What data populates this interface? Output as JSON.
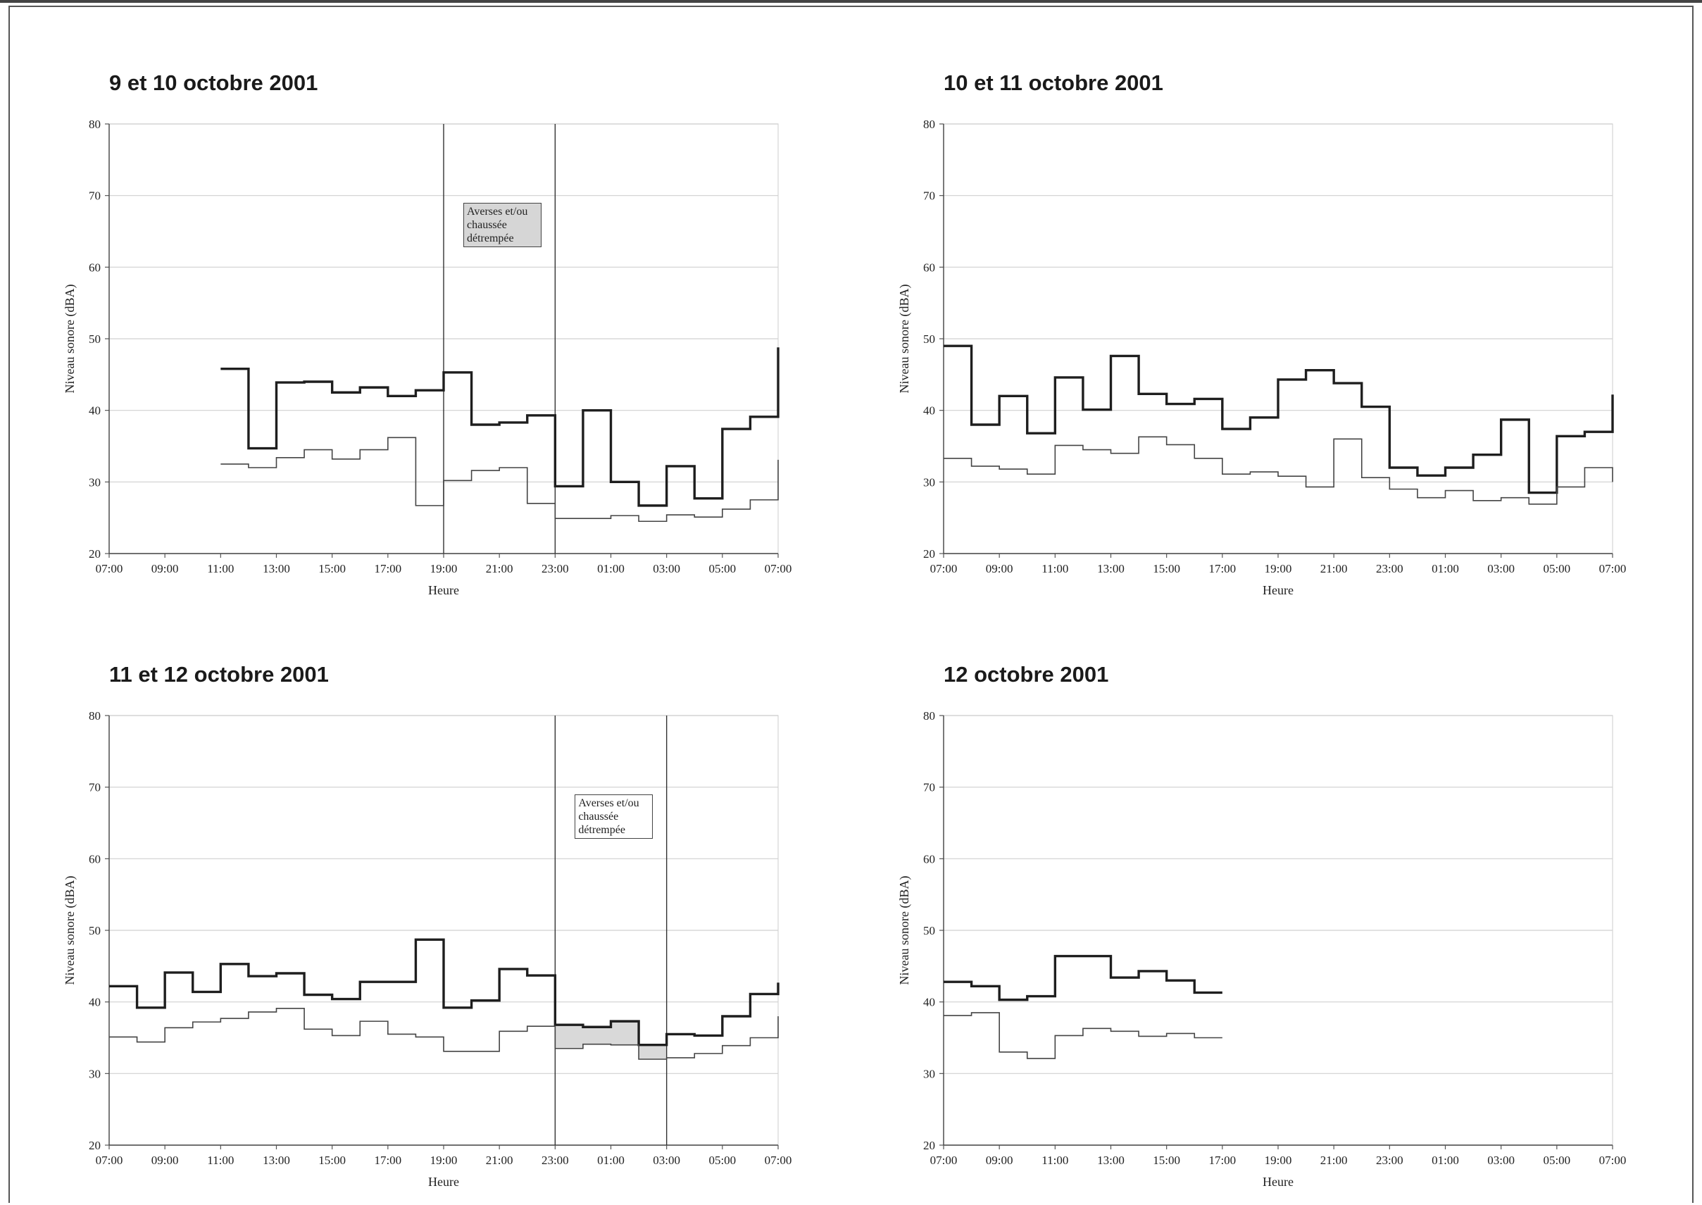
{
  "charts": [
    {
      "id": "p1",
      "title": "9 et 10 octobre 2001",
      "xlabel": "Heure",
      "ylabel": "Niveau sonore (dBA)",
      "annotation": {
        "lines": [
          "Averses et/ou",
          "chaussée",
          "détrempée"
        ],
        "filled": true,
        "start_hour": 12,
        "end_hour": 16
      }
    },
    {
      "id": "p2",
      "title": "10 et 11 octobre 2001",
      "xlabel": "Heure",
      "ylabel": "Niveau sonore (dBA)",
      "annotation": null
    },
    {
      "id": "p3",
      "title": "11 et 12 octobre 2001",
      "xlabel": "Heure",
      "ylabel": "Niveau sonore (dBA)",
      "annotation": {
        "lines": [
          "Averses et/ou",
          "chaussée",
          "détrempée"
        ],
        "filled": false,
        "start_hour": 16,
        "end_hour": 20
      }
    },
    {
      "id": "p4",
      "title": "12 octobre 2001",
      "xlabel": "Heure",
      "ylabel": "Niveau sonore (dBA)",
      "annotation": null
    }
  ],
  "chart_data": [
    {
      "type": "line",
      "title": "9 et 10 octobre 2001",
      "xlabel": "Heure",
      "ylabel": "Niveau sonore (dBA)",
      "xticks": [
        "07:00",
        "09:00",
        "11:00",
        "13:00",
        "15:00",
        "17:00",
        "19:00",
        "21:00",
        "23:00",
        "01:00",
        "03:00",
        "05:00",
        "07:00"
      ],
      "ylim": [
        20,
        80
      ],
      "yticks": [
        20,
        30,
        40,
        50,
        60,
        70,
        80
      ],
      "step": "post",
      "grid": true,
      "vertical_markers": [
        "19:00",
        "23:00"
      ],
      "series": [
        {
          "x": [
            "11:00",
            "12:00",
            "13:00",
            "14:00",
            "15:00",
            "16:00",
            "17:00",
            "18:00",
            "19:00",
            "20:00",
            "21:00",
            "22:00",
            "23:00",
            "00:00",
            "01:00",
            "02:00",
            "03:00",
            "04:00",
            "05:00",
            "06:00",
            "07:00"
          ],
          "values": [
            45.8,
            34.7,
            43.9,
            44.0,
            42.5,
            43.2,
            42.0,
            42.8,
            45.3,
            38.0,
            38.3,
            39.3,
            29.4,
            40.0,
            30.0,
            26.7,
            32.2,
            27.7,
            37.4,
            39.1,
            48.8
          ]
        },
        {
          "x": [
            "11:00",
            "12:00",
            "13:00",
            "14:00",
            "15:00",
            "16:00",
            "17:00",
            "18:00",
            "19:00",
            "20:00",
            "21:00",
            "22:00",
            "23:00",
            "00:00",
            "01:00",
            "02:00",
            "03:00",
            "04:00",
            "05:00",
            "06:00",
            "07:00"
          ],
          "values": [
            32.5,
            32.0,
            33.4,
            34.5,
            33.2,
            34.5,
            36.2,
            26.7,
            30.2,
            31.6,
            32.0,
            27.0,
            24.9,
            24.9,
            25.3,
            24.5,
            25.4,
            25.1,
            26.2,
            27.5,
            33.1
          ]
        }
      ]
    },
    {
      "type": "line",
      "title": "10 et 11 octobre 2001",
      "xlabel": "Heure",
      "ylabel": "Niveau sonore (dBA)",
      "xticks": [
        "07:00",
        "09:00",
        "11:00",
        "13:00",
        "15:00",
        "17:00",
        "19:00",
        "21:00",
        "23:00",
        "01:00",
        "03:00",
        "05:00",
        "07:00"
      ],
      "ylim": [
        20,
        80
      ],
      "yticks": [
        20,
        30,
        40,
        50,
        60,
        70,
        80
      ],
      "step": "post",
      "grid": true,
      "series": [
        {
          "x": [
            "07:00",
            "08:00",
            "09:00",
            "10:00",
            "11:00",
            "12:00",
            "13:00",
            "14:00",
            "15:00",
            "16:00",
            "17:00",
            "18:00",
            "19:00",
            "20:00",
            "21:00",
            "22:00",
            "23:00",
            "00:00",
            "01:00",
            "02:00",
            "03:00",
            "04:00",
            "05:00",
            "06:00",
            "07:00"
          ],
          "values": [
            49.0,
            38.0,
            42.0,
            36.8,
            44.6,
            40.1,
            47.6,
            42.3,
            40.9,
            41.6,
            37.4,
            39.0,
            44.3,
            45.6,
            43.8,
            40.5,
            32.0,
            30.9,
            32.0,
            33.8,
            38.7,
            28.5,
            36.4,
            37.0,
            42.2
          ]
        },
        {
          "x": [
            "07:00",
            "08:00",
            "09:00",
            "10:00",
            "11:00",
            "12:00",
            "13:00",
            "14:00",
            "15:00",
            "16:00",
            "17:00",
            "18:00",
            "19:00",
            "20:00",
            "21:00",
            "22:00",
            "23:00",
            "00:00",
            "01:00",
            "02:00",
            "03:00",
            "04:00",
            "05:00",
            "06:00",
            "07:00"
          ],
          "values": [
            33.3,
            32.2,
            31.8,
            31.1,
            35.1,
            34.5,
            34.0,
            36.3,
            35.2,
            33.3,
            31.1,
            31.4,
            30.8,
            29.3,
            36.0,
            30.6,
            29.0,
            27.8,
            28.8,
            27.4,
            27.8,
            26.9,
            29.3,
            32.0,
            30.0
          ]
        }
      ]
    },
    {
      "type": "line",
      "title": "11 et 12 octobre 2001",
      "xlabel": "Heure",
      "ylabel": "Niveau sonore (dBA)",
      "xticks": [
        "07:00",
        "09:00",
        "11:00",
        "13:00",
        "15:00",
        "17:00",
        "19:00",
        "21:00",
        "23:00",
        "01:00",
        "03:00",
        "05:00",
        "07:00"
      ],
      "ylim": [
        20,
        80
      ],
      "yticks": [
        20,
        30,
        40,
        50,
        60,
        70,
        80
      ],
      "step": "post",
      "grid": true,
      "vertical_markers": [
        "23:00",
        "03:00"
      ],
      "series": [
        {
          "x": [
            "07:00",
            "08:00",
            "09:00",
            "10:00",
            "11:00",
            "12:00",
            "13:00",
            "14:00",
            "15:00",
            "16:00",
            "17:00",
            "18:00",
            "19:00",
            "20:00",
            "21:00",
            "22:00",
            "23:00",
            "00:00",
            "01:00",
            "02:00",
            "03:00",
            "04:00",
            "05:00",
            "06:00",
            "07:00"
          ],
          "values": [
            42.2,
            39.2,
            44.1,
            41.4,
            45.3,
            43.6,
            44.0,
            41.0,
            40.4,
            42.8,
            42.8,
            48.7,
            39.2,
            40.2,
            44.6,
            43.7,
            36.8,
            36.5,
            37.3,
            34.0,
            35.5,
            35.3,
            38.0,
            41.1,
            42.7
          ]
        },
        {
          "x": [
            "07:00",
            "08:00",
            "09:00",
            "10:00",
            "11:00",
            "12:00",
            "13:00",
            "14:00",
            "15:00",
            "16:00",
            "17:00",
            "18:00",
            "19:00",
            "20:00",
            "21:00",
            "22:00",
            "23:00",
            "00:00",
            "01:00",
            "02:00",
            "03:00",
            "04:00",
            "05:00",
            "06:00",
            "07:00"
          ],
          "values": [
            35.1,
            34.4,
            36.4,
            37.2,
            37.7,
            38.6,
            39.1,
            36.2,
            35.3,
            37.3,
            35.5,
            35.1,
            33.1,
            33.1,
            35.9,
            36.6,
            33.5,
            34.1,
            34.0,
            32.0,
            32.2,
            32.8,
            33.9,
            35.0,
            38.0
          ]
        }
      ]
    },
    {
      "type": "line",
      "title": "12 octobre 2001",
      "xlabel": "Heure",
      "ylabel": "Niveau sonore (dBA)",
      "xticks": [
        "07:00",
        "09:00",
        "11:00",
        "13:00",
        "15:00",
        "17:00",
        "19:00",
        "21:00",
        "23:00",
        "01:00",
        "03:00",
        "05:00",
        "07:00"
      ],
      "ylim": [
        20,
        80
      ],
      "yticks": [
        20,
        30,
        40,
        50,
        60,
        70,
        80
      ],
      "step": "post",
      "grid": true,
      "series": [
        {
          "x": [
            "07:00",
            "08:00",
            "09:00",
            "10:00",
            "11:00",
            "12:00",
            "13:00",
            "14:00",
            "15:00",
            "16:00",
            "17:00"
          ],
          "values": [
            42.8,
            42.2,
            40.3,
            40.8,
            46.4,
            46.4,
            43.4,
            44.3,
            43.0,
            41.3,
            41.3
          ]
        },
        {
          "x": [
            "07:00",
            "08:00",
            "09:00",
            "10:00",
            "11:00",
            "12:00",
            "13:00",
            "14:00",
            "15:00",
            "16:00",
            "17:00"
          ],
          "values": [
            38.1,
            38.5,
            33.0,
            32.1,
            35.3,
            36.3,
            35.9,
            35.2,
            35.6,
            35.0,
            35.0
          ]
        }
      ]
    }
  ]
}
